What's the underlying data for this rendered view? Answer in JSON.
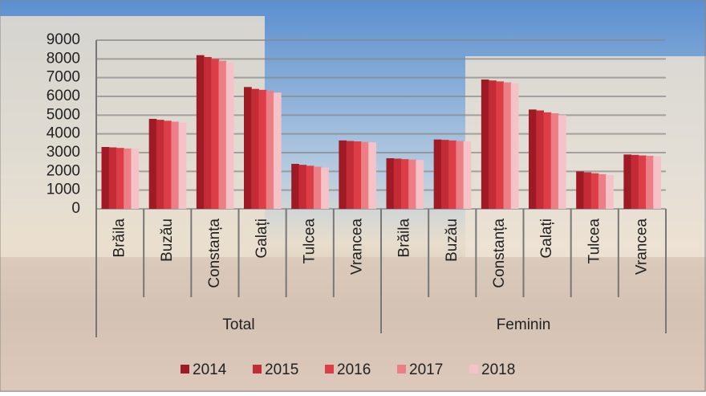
{
  "chart_data": {
    "type": "bar",
    "categories": [
      "Brăila",
      "Buzău",
      "Constanța",
      "Galați",
      "Tulcea",
      "Vrancea",
      "Brăila",
      "Buzău",
      "Constanța",
      "Galați",
      "Tulcea",
      "Vrancea"
    ],
    "groups": [
      "Total",
      "Feminin"
    ],
    "series": [
      {
        "name": "2014",
        "color": "#9e1b26",
        "values": [
          3300,
          4800,
          8200,
          6500,
          2400,
          3650,
          2700,
          3700,
          6900,
          5300,
          2000,
          2900
        ]
      },
      {
        "name": "2015",
        "color": "#c32c36",
        "values": [
          3280,
          4750,
          8100,
          6400,
          2350,
          3620,
          2680,
          3680,
          6850,
          5250,
          1950,
          2880
        ]
      },
      {
        "name": "2016",
        "color": "#dc3d46",
        "values": [
          3250,
          4700,
          8000,
          6350,
          2300,
          3600,
          2650,
          3650,
          6800,
          5150,
          1900,
          2850
        ]
      },
      {
        "name": "2017",
        "color": "#ec7f86",
        "values": [
          3220,
          4650,
          7900,
          6300,
          2250,
          3570,
          2630,
          3620,
          6750,
          5100,
          1850,
          2830
        ]
      },
      {
        "name": "2018",
        "color": "#f5c3c7",
        "values": [
          3200,
          4600,
          7800,
          6200,
          2200,
          3550,
          2600,
          3600,
          6700,
          5000,
          1800,
          2800
        ]
      }
    ],
    "ylim": [
      0,
      9000
    ],
    "yticks": [
      0,
      1000,
      2000,
      3000,
      4000,
      5000,
      6000,
      7000,
      8000,
      9000
    ],
    "grid": true
  }
}
